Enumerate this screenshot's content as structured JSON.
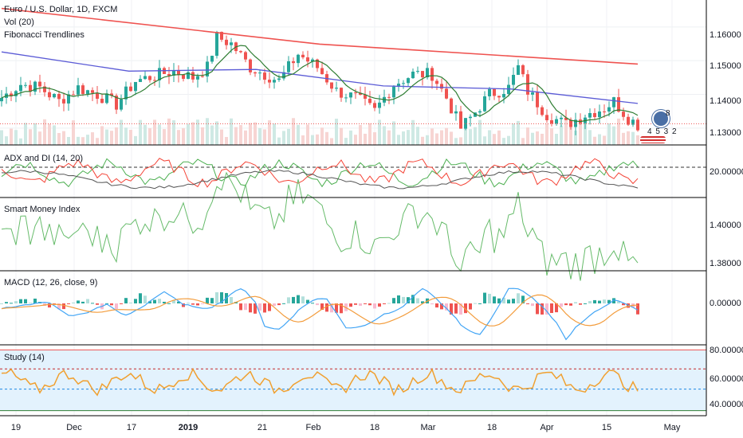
{
  "title": "Euro / U.S. Dollar, 1D, FXCM",
  "indicators": [
    "Vol (20)",
    "Fibonacci Trendlines"
  ],
  "colors": {
    "up": "#26a69a",
    "down": "#ef5350",
    "ma_slow": "#ef5350",
    "ma_mid": "#5b5bd6",
    "ma_fast": "#2e7d32",
    "di_plus": "#4caf50",
    "di_minus": "#f44336",
    "adx": "#555555",
    "smi": "#66bb6a",
    "macd": "#42a5f5",
    "signal": "#f39c3c",
    "study": "#f0a030",
    "study_band": "#e3f2fd"
  },
  "chart_data": [
    {
      "type": "candlestick",
      "title": "Euro / U.S. Dollar, 1D, FXCM",
      "y_ticks": [
        "1.16000",
        "1.15000",
        "1.14000",
        "1.13000"
      ],
      "ylim": [
        1.125,
        1.168
      ],
      "x_ticks": [
        "19",
        "Dec",
        "17",
        "2019",
        "21",
        "Feb",
        "18",
        "Mar",
        "18",
        "Apr",
        "15",
        "May"
      ],
      "ma_slow": [
        1.1655,
        1.1549,
        1.149
      ],
      "ma_mid": [
        1.1526,
        1.1469,
        1.1474,
        1.1425,
        1.1416,
        1.1373
      ],
      "last_price": 1.1313,
      "badge": {
        "icon": "8",
        "numbers": "4 5 3 2"
      }
    },
    {
      "type": "line",
      "title": "ADX and DI (14, 20)",
      "y_ticks": [
        "20.00000"
      ],
      "dashed_level": 20
    },
    {
      "type": "line",
      "title": "Smart Money Index",
      "y_ticks": [
        "1.40000",
        "1.38000"
      ]
    },
    {
      "type": "histogram",
      "title": "MACD (12, 26, close, 9)",
      "y_ticks": [
        "0.00000"
      ]
    },
    {
      "type": "line",
      "title": "Study (14)",
      "y_ticks": [
        "80.00000",
        "60.00000",
        "40.00000"
      ],
      "bands": [
        80,
        65,
        49,
        32
      ]
    }
  ]
}
